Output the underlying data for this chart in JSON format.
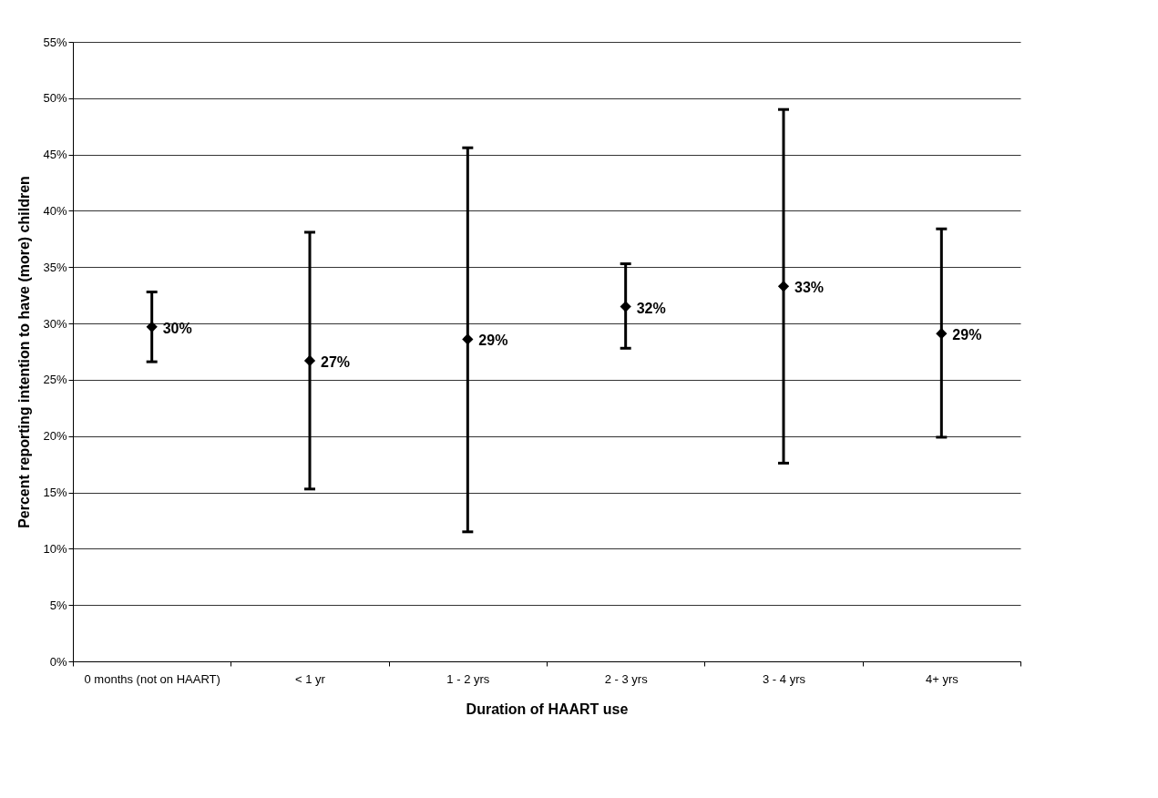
{
  "chart_data": {
    "type": "scatter",
    "xlabel": "Duration of HAART use",
    "ylabel": "Percent reporting intention to have (more) children",
    "categories": [
      "0 months (not on HAART)",
      "< 1 yr",
      "1 - 2 yrs",
      "2 - 3 yrs",
      "3 - 4 yrs",
      "4+ yrs"
    ],
    "series": [
      {
        "color": "#000000",
        "values": [
          29.7,
          26.7,
          28.6,
          31.5,
          33.3,
          29.1
        ],
        "errors": [
          [
            26.6,
            32.8
          ],
          [
            15.3,
            38.1
          ],
          [
            11.5,
            45.6
          ],
          [
            27.8,
            35.3
          ],
          [
            17.6,
            49.0
          ],
          [
            19.9,
            38.4
          ]
        ],
        "value_labels": [
          "30%",
          "27%",
          "29%",
          "32%",
          "33%",
          "29%"
        ]
      }
    ],
    "ylim": [
      0,
      55
    ],
    "yticks": [
      {
        "value": 0,
        "label": "0%"
      },
      {
        "value": 5,
        "label": "5%"
      },
      {
        "value": 10,
        "label": "10%"
      },
      {
        "value": 15,
        "label": "15%"
      },
      {
        "value": 20,
        "label": "20%"
      },
      {
        "value": 25,
        "label": "25%"
      },
      {
        "value": 30,
        "label": "30%"
      },
      {
        "value": 35,
        "label": "35%"
      },
      {
        "value": 40,
        "label": "40%"
      },
      {
        "value": 45,
        "label": "45%"
      },
      {
        "value": 50,
        "label": "50%"
      },
      {
        "value": 55,
        "label": "55%"
      }
    ],
    "grid": "y",
    "marker": "diamond"
  }
}
